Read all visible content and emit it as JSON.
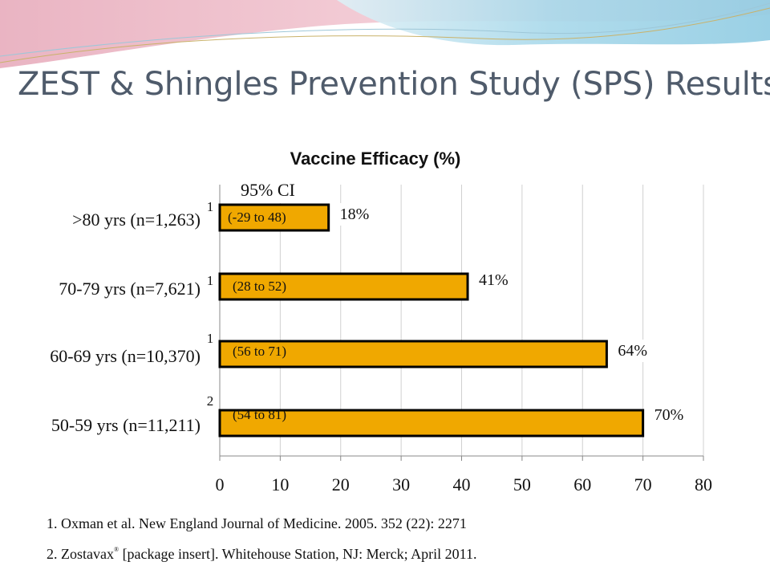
{
  "slide": {
    "title": "ZEST & Shingles Prevention Study (SPS) Results",
    "colors": {
      "title": "#4f5b6b",
      "bar": "#f0a800",
      "band_pink": "#e8a0b0",
      "band_blue": "#9fd4e8"
    }
  },
  "chart_data": {
    "type": "bar",
    "orientation": "horizontal",
    "title": "Vaccine Efficacy (%)",
    "xlabel": "",
    "ylabel": "",
    "xlim": [
      0,
      80
    ],
    "x_ticks": [
      "0",
      "10",
      "20",
      "30",
      "40",
      "50",
      "60",
      "70",
      "80"
    ],
    "grid": true,
    "ci_header": "95% CI",
    "categories": [
      ">80 yrs (n=1,263)",
      "70-79 yrs (n=7,621)",
      "60-69 yrs (n=10,370)",
      "50-59 yrs (n=11,211)"
    ],
    "values": [
      18,
      41,
      64,
      70
    ],
    "value_labels": [
      "18%",
      "41%",
      "64%",
      "70%"
    ],
    "ci_labels": [
      "(-29 to 48)",
      "(28 to 52)",
      "(56 to 71)",
      "(54 to 81)"
    ],
    "ref_marks": [
      "1",
      "1",
      "1",
      "2"
    ],
    "bar_color": "#f0a800"
  },
  "references": [
    {
      "text": "1. Oxman et al. New England Journal of Medicine. 2005. 352 (22): 2271"
    },
    {
      "text_before": "2. Zostavax",
      "mark": "®",
      "text_after": " [package insert]. Whitehouse Station, NJ: Merck; April 2011."
    }
  ]
}
